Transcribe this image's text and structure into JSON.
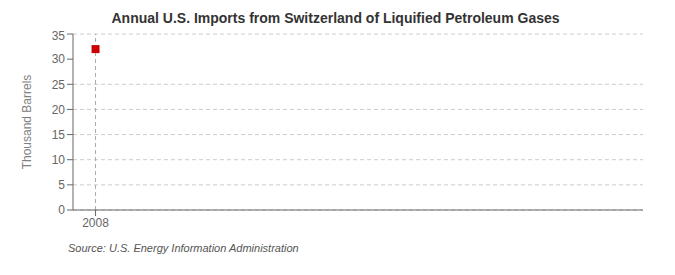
{
  "chart_data": {
    "type": "scatter",
    "title": "Annual U.S. Imports from Switzerland of Liquified Petroleum Gases",
    "y_label": "Thousand Barrels",
    "annotation": "Source: U.S. Energy Information Administration",
    "x": [
      2008
    ],
    "values": [
      32
    ],
    "color": "#cc0000",
    "marker": "square",
    "line_style": "none",
    "vline": 2008,
    "xlim": [
      2007.3,
      2025
    ],
    "ylim": [
      0,
      35
    ],
    "xticks": [
      2008
    ],
    "yticks": [
      0,
      5,
      10,
      15,
      20,
      25,
      30,
      35
    ],
    "grid": true
  }
}
